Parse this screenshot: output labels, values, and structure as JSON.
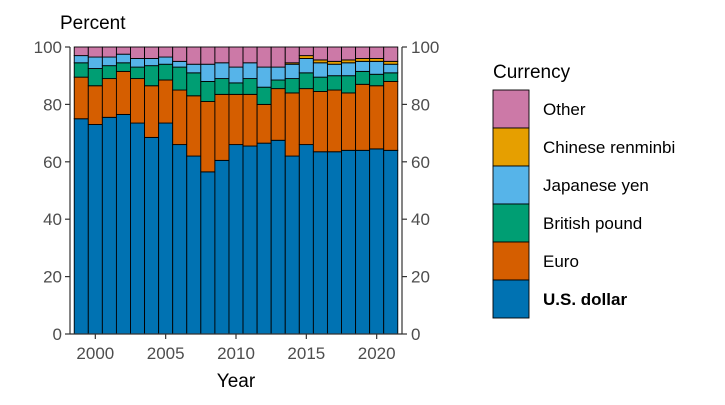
{
  "chart_data": {
    "type": "bar",
    "stacked": true,
    "title": "",
    "ylabel": "Percent",
    "xlabel": "Year",
    "ylim": [
      0,
      100
    ],
    "yticks": [
      0,
      20,
      40,
      60,
      80,
      100
    ],
    "xticks": [
      2000,
      2005,
      2010,
      2015,
      2020
    ],
    "x": [
      1999,
      2000,
      2001,
      2002,
      2003,
      2004,
      2005,
      2006,
      2007,
      2008,
      2009,
      2010,
      2011,
      2012,
      2013,
      2014,
      2015,
      2016,
      2017,
      2018,
      2019,
      2020,
      2021
    ],
    "legend": {
      "title": "Currency",
      "position": "right"
    },
    "series": [
      {
        "name": "U.S. dollar",
        "color": "#0072B2",
        "bold": true,
        "values": [
          75,
          73,
          75.5,
          76.5,
          73.5,
          68.5,
          73.5,
          66,
          62,
          56.5,
          60.5,
          66,
          65.5,
          66.5,
          67.5,
          62,
          66,
          63.5,
          63.5,
          64,
          64,
          64.5,
          64
        ]
      },
      {
        "name": "Euro",
        "color": "#D55E00",
        "bold": false,
        "values": [
          14.5,
          13.5,
          13.5,
          15,
          15.5,
          18,
          15,
          19,
          21,
          24.5,
          23,
          17.5,
          18,
          13.5,
          18,
          22,
          19.5,
          21,
          21.5,
          20,
          23,
          22,
          24
        ]
      },
      {
        "name": "British pound",
        "color": "#009E73",
        "bold": false,
        "values": [
          5,
          6,
          4.5,
          3,
          4,
          7,
          5.5,
          8,
          8,
          7,
          5.5,
          4,
          5.5,
          6,
          3,
          5,
          5.5,
          5,
          5,
          6,
          4.5,
          4,
          3
        ]
      },
      {
        "name": "Japanese yen",
        "color": "#56B4E9",
        "bold": false,
        "values": [
          2.5,
          4,
          3,
          3,
          3,
          2.5,
          2.5,
          2,
          3,
          6,
          5.5,
          5.5,
          5.5,
          7,
          4.5,
          5,
          5,
          5,
          4,
          4.5,
          3.5,
          4.5,
          3
        ]
      },
      {
        "name": "Chinese renminbi",
        "color": "#E69F00",
        "bold": false,
        "values": [
          0,
          0,
          0,
          0,
          0,
          0,
          0,
          0,
          0,
          0,
          0,
          0,
          0,
          0,
          0,
          0.5,
          1,
          1,
          1,
          1,
          1,
          1,
          1
        ]
      },
      {
        "name": "Other",
        "color": "#CC79A7",
        "bold": false,
        "values": [
          3,
          3.5,
          3.5,
          2.5,
          4,
          4,
          3.5,
          5,
          6,
          6,
          5.5,
          7,
          5.5,
          7,
          7,
          5.5,
          3,
          4.5,
          5,
          4.5,
          4,
          4,
          5
        ]
      }
    ],
    "legend_order": [
      "Other",
      "Chinese renminbi",
      "Japanese yen",
      "British pound",
      "Euro",
      "U.S. dollar"
    ]
  }
}
